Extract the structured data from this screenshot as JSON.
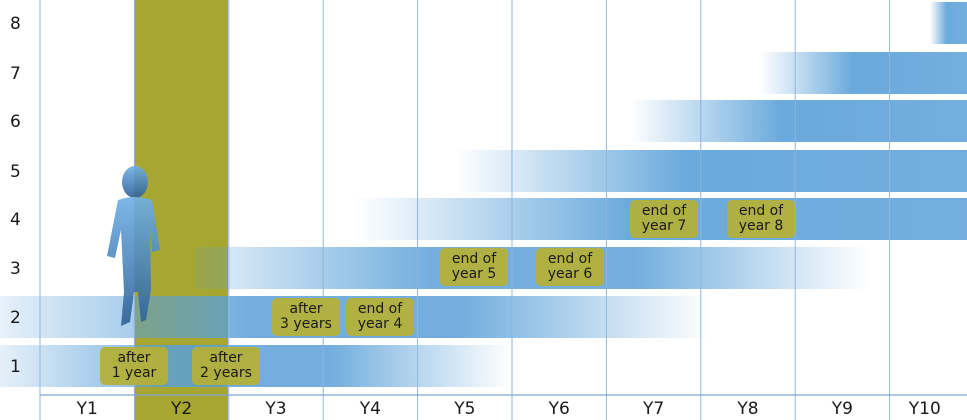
{
  "y_axis": {
    "labels": [
      "1",
      "2",
      "3",
      "4",
      "5",
      "6",
      "7",
      "8"
    ]
  },
  "x_axis": {
    "labels": [
      "Y1",
      "Y2",
      "Y3",
      "Y4",
      "Y5",
      "Y6",
      "Y7",
      "Y8",
      "Y9",
      "Y10"
    ]
  },
  "callouts": [
    {
      "lines": [
        "after",
        "1 year"
      ]
    },
    {
      "lines": [
        "after",
        "2 years"
      ]
    },
    {
      "lines": [
        "after",
        "3 years"
      ]
    },
    {
      "lines": [
        "end of",
        "year 4"
      ]
    },
    {
      "lines": [
        "end of",
        "year 5"
      ]
    },
    {
      "lines": [
        "end of",
        "year 6"
      ]
    },
    {
      "lines": [
        "end of",
        "year 7"
      ]
    },
    {
      "lines": [
        "end of",
        "year 8"
      ]
    }
  ]
}
